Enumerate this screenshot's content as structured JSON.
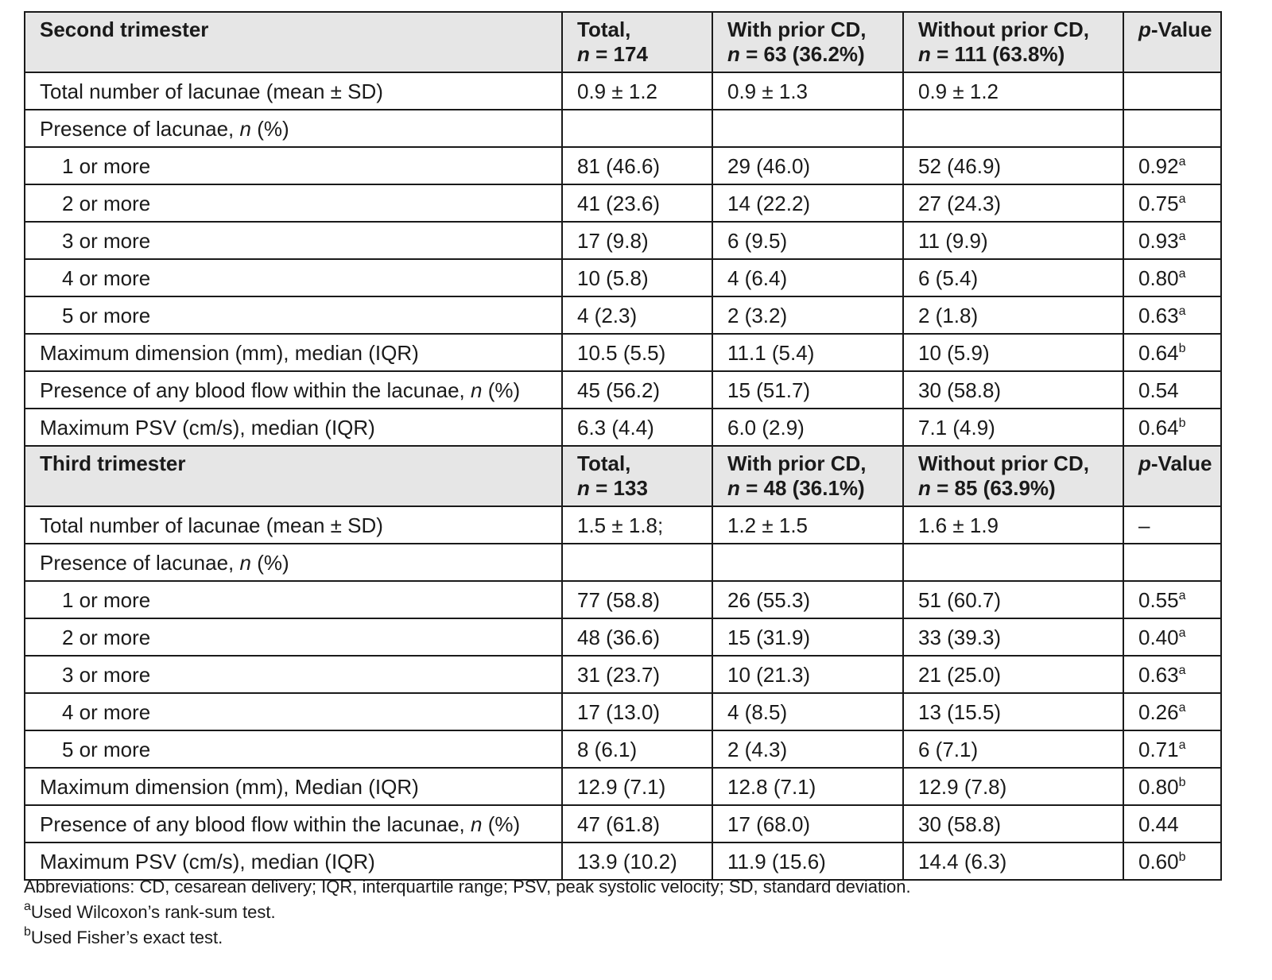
{
  "tables": [
    {
      "section": "Second trimester",
      "headers": [
        {
          "line1": "Total,",
          "line2_n": "n",
          "line2_rest": " = 174"
        },
        {
          "line1": "With prior CD,",
          "line2_n": "n",
          "line2_rest": " = 63 (36.2%)"
        },
        {
          "line1": "Without prior CD,",
          "line2_n": "n",
          "line2_rest": " = 111 (63.8%)"
        }
      ],
      "pvalue_header": {
        "italic": "p",
        "rest": "-Value"
      },
      "rows": [
        {
          "label": "Total number of lacunae (mean ± SD)",
          "total": "0.9 ± 1.2",
          "with": "0.9 ± 1.3",
          "without": "0.9 ± 1.2",
          "p": "",
          "sup": ""
        },
        {
          "label": "Presence of lacunae, ",
          "label_italic": "n",
          "label_tail": " (%)",
          "total": "",
          "with": "",
          "without": "",
          "p": "",
          "sup": ""
        },
        {
          "label": "1 or more",
          "indent": true,
          "total": "81 (46.6)",
          "with": "29 (46.0)",
          "without": "52 (46.9)",
          "p": "0.92",
          "sup": "a"
        },
        {
          "label": "2 or more",
          "indent": true,
          "total": "41 (23.6)",
          "with": "14 (22.2)",
          "without": "27 (24.3)",
          "p": "0.75",
          "sup": "a"
        },
        {
          "label": "3 or more",
          "indent": true,
          "total": "17 (9.8)",
          "with": "6 (9.5)",
          "without": "11 (9.9)",
          "p": "0.93",
          "sup": "a"
        },
        {
          "label": "4 or more",
          "indent": true,
          "total": "10 (5.8)",
          "with": "4 (6.4)",
          "without": "6 (5.4)",
          "p": "0.80",
          "sup": "a"
        },
        {
          "label": "5 or more",
          "indent": true,
          "total": "4 (2.3)",
          "with": "2 (3.2)",
          "without": "2 (1.8)",
          "p": "0.63",
          "sup": "a"
        },
        {
          "label": "Maximum dimension (mm), median (IQR)",
          "total": "10.5 (5.5)",
          "with": "11.1 (5.4)",
          "without": "10 (5.9)",
          "p": "0.64",
          "sup": "b"
        },
        {
          "label": "Presence of any blood flow within the lacunae, ",
          "label_italic": "n",
          "label_tail": " (%)",
          "total": "45 (56.2)",
          "with": "15 (51.7)",
          "without": "30 (58.8)",
          "p": "0.54",
          "sup": ""
        },
        {
          "label": "Maximum PSV (cm/s), median (IQR)",
          "total": "6.3 (4.4)",
          "with": "6.0 (2.9)",
          "without": "7.1 (4.9)",
          "p": "0.64",
          "sup": "b"
        }
      ]
    },
    {
      "section": "Third trimester",
      "headers": [
        {
          "line1": "Total,",
          "line2_n": "n",
          "line2_rest": " = 133"
        },
        {
          "line1": "With prior CD,",
          "line2_n": "n",
          "line2_rest": " = 48 (36.1%)"
        },
        {
          "line1": "Without prior CD,",
          "line2_n": "n",
          "line2_rest": " = 85 (63.9%)"
        }
      ],
      "pvalue_header": {
        "italic": "p",
        "rest": "-Value"
      },
      "rows": [
        {
          "label": "Total number of lacunae (mean ± SD)",
          "total": "1.5 ± 1.8;",
          "with": "1.2 ± 1.5",
          "without": "1.6 ± 1.9",
          "p": "–",
          "sup": ""
        },
        {
          "label": "Presence of lacunae, ",
          "label_italic": "n",
          "label_tail": " (%)",
          "total": "",
          "with": "",
          "without": "",
          "p": "",
          "sup": ""
        },
        {
          "label": "1 or more",
          "indent": true,
          "total": "77 (58.8)",
          "with": "26 (55.3)",
          "without": "51 (60.7)",
          "p": "0.55",
          "sup": "a"
        },
        {
          "label": "2 or more",
          "indent": true,
          "total": "48 (36.6)",
          "with": "15 (31.9)",
          "without": "33 (39.3)",
          "p": "0.40",
          "sup": "a"
        },
        {
          "label": "3 or more",
          "indent": true,
          "total": "31 (23.7)",
          "with": "10 (21.3)",
          "without": "21 (25.0)",
          "p": "0.63",
          "sup": "a"
        },
        {
          "label": "4 or more",
          "indent": true,
          "total": "17 (13.0)",
          "with": "4 (8.5)",
          "without": "13 (15.5)",
          "p": "0.26",
          "sup": "a"
        },
        {
          "label": "5 or more",
          "indent": true,
          "total": "8 (6.1)",
          "with": "2 (4.3)",
          "without": "6 (7.1)",
          "p": "0.71",
          "sup": "a"
        },
        {
          "label": "Maximum dimension (mm), Median (IQR)",
          "total": "12.9 (7.1)",
          "with": "12.8 (7.1)",
          "without": "12.9 (7.8)",
          "p": "0.80",
          "sup": "b"
        },
        {
          "label": "Presence of any blood flow within the lacunae, ",
          "label_italic": "n",
          "label_tail": " (%)",
          "total": "47 (61.8)",
          "with": "17 (68.0)",
          "without": "30 (58.8)",
          "p": "0.44",
          "sup": ""
        },
        {
          "label": "Maximum PSV (cm/s), median (IQR)",
          "total": "13.9 (10.2)",
          "with": "11.9 (15.6)",
          "without": "14.4 (6.3)",
          "p": "0.60",
          "sup": "b"
        }
      ]
    }
  ],
  "footnotes": {
    "abbreviations": "Abbreviations: CD, cesarean delivery; IQR, interquartile range; PSV, peak systolic velocity; SD, standard deviation.",
    "a_mark": "a",
    "a_text": "Used Wilcoxon’s rank-sum test.",
    "b_mark": "b",
    "b_text": "Used Fisher’s exact test."
  }
}
